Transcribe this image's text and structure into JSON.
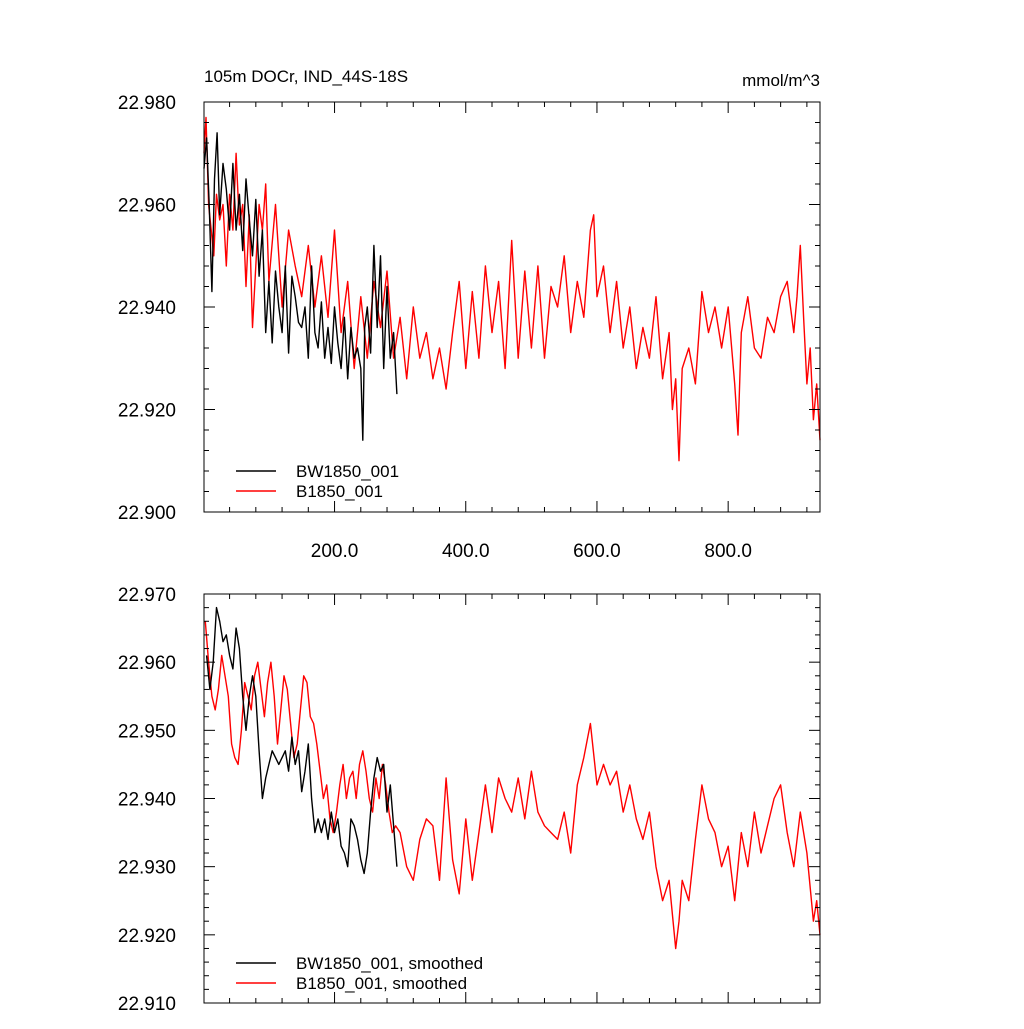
{
  "chart_data": [
    {
      "type": "line",
      "title_left": "105m DOCr, IND_44S-18S",
      "title_right": "mmol/m^3",
      "xlabel": "",
      "ylabel": "",
      "xlim": [
        1,
        940
      ],
      "ylim": [
        22.9,
        22.98
      ],
      "xticks": [
        200,
        400,
        600,
        800
      ],
      "xtick_labels": [
        "200.0",
        "400.0",
        "600.0",
        "800.0"
      ],
      "yticks": [
        22.9,
        22.92,
        22.94,
        22.96,
        22.98
      ],
      "ytick_labels": [
        "22.900",
        "22.920",
        "22.940",
        "22.960",
        "22.980"
      ],
      "legend_position": "bottom-left",
      "series": [
        {
          "name": "BW1850_001",
          "color": "#000000",
          "x": [
            1,
            5,
            9,
            13,
            17,
            21,
            25,
            30,
            35,
            40,
            45,
            50,
            55,
            60,
            65,
            70,
            75,
            80,
            85,
            90,
            95,
            100,
            105,
            110,
            115,
            120,
            125,
            130,
            135,
            140,
            145,
            150,
            155,
            160,
            165,
            170,
            175,
            180,
            185,
            190,
            195,
            200,
            205,
            210,
            215,
            220,
            225,
            230,
            235,
            240,
            243,
            246,
            250,
            255,
            260,
            265,
            270,
            275,
            280,
            285,
            290,
            295
          ],
          "values": [
            22.967,
            22.973,
            22.96,
            22.943,
            22.965,
            22.974,
            22.958,
            22.968,
            22.963,
            22.955,
            22.968,
            22.955,
            22.962,
            22.951,
            22.965,
            22.957,
            22.95,
            22.961,
            22.946,
            22.955,
            22.935,
            22.945,
            22.933,
            22.947,
            22.94,
            22.935,
            22.948,
            22.931,
            22.946,
            22.942,
            22.937,
            22.936,
            22.94,
            22.93,
            22.948,
            22.935,
            22.932,
            22.941,
            22.93,
            22.936,
            22.929,
            22.94,
            22.933,
            22.928,
            22.938,
            22.926,
            22.936,
            22.93,
            22.932,
            22.928,
            22.914,
            22.936,
            22.94,
            22.931,
            22.952,
            22.936,
            22.95,
            22.928,
            22.944,
            22.93,
            22.935,
            22.923
          ]
        },
        {
          "name": "B1850_001",
          "color": "#ff0000",
          "x": [
            1,
            4,
            8,
            12,
            16,
            20,
            25,
            30,
            35,
            40,
            45,
            50,
            55,
            60,
            65,
            70,
            75,
            80,
            85,
            90,
            95,
            100,
            110,
            120,
            130,
            140,
            150,
            160,
            170,
            180,
            190,
            200,
            210,
            220,
            230,
            240,
            250,
            260,
            270,
            280,
            290,
            300,
            310,
            320,
            330,
            340,
            350,
            360,
            370,
            380,
            390,
            400,
            410,
            420,
            430,
            440,
            450,
            460,
            470,
            480,
            490,
            500,
            510,
            520,
            530,
            540,
            550,
            560,
            570,
            580,
            590,
            595,
            600,
            610,
            620,
            630,
            640,
            650,
            660,
            670,
            680,
            690,
            700,
            710,
            715,
            720,
            725,
            730,
            740,
            750,
            760,
            770,
            780,
            790,
            800,
            810,
            815,
            820,
            830,
            840,
            850,
            860,
            870,
            880,
            890,
            900,
            905,
            910,
            915,
            920,
            925,
            930,
            935,
            940
          ],
          "values": [
            22.97,
            22.977,
            22.96,
            22.955,
            22.95,
            22.962,
            22.957,
            22.96,
            22.948,
            22.962,
            22.955,
            22.97,
            22.956,
            22.96,
            22.944,
            22.958,
            22.936,
            22.948,
            22.96,
            22.955,
            22.964,
            22.945,
            22.96,
            22.94,
            22.955,
            22.948,
            22.942,
            22.952,
            22.94,
            22.95,
            22.938,
            22.955,
            22.935,
            22.945,
            22.928,
            22.942,
            22.93,
            22.945,
            22.936,
            22.947,
            22.93,
            22.938,
            22.926,
            22.94,
            22.93,
            22.935,
            22.926,
            22.932,
            22.924,
            22.935,
            22.945,
            22.928,
            22.943,
            22.93,
            22.948,
            22.935,
            22.945,
            22.928,
            22.953,
            22.93,
            22.947,
            22.932,
            22.948,
            22.93,
            22.944,
            22.94,
            22.95,
            22.935,
            22.945,
            22.938,
            22.955,
            22.958,
            22.942,
            22.948,
            22.935,
            22.945,
            22.932,
            22.94,
            22.928,
            22.936,
            22.93,
            22.942,
            22.926,
            22.935,
            22.92,
            22.926,
            22.91,
            22.928,
            22.932,
            22.925,
            22.943,
            22.935,
            22.94,
            22.932,
            22.94,
            22.925,
            22.915,
            22.935,
            22.942,
            22.932,
            22.93,
            22.938,
            22.935,
            22.942,
            22.945,
            22.935,
            22.942,
            22.952,
            22.938,
            22.925,
            22.932,
            22.918,
            22.925,
            22.914
          ]
        }
      ]
    },
    {
      "type": "line",
      "xlim": [
        1,
        940
      ],
      "ylim": [
        22.91,
        22.97
      ],
      "xticks": [
        200,
        400,
        600,
        800
      ],
      "yticks": [
        22.91,
        22.92,
        22.93,
        22.94,
        22.95,
        22.96,
        22.97
      ],
      "ytick_labels": [
        "22.910",
        "22.920",
        "22.930",
        "22.940",
        "22.950",
        "22.960",
        "22.970"
      ],
      "legend_position": "bottom-left",
      "series": [
        {
          "name": "BW1850_001, smoothed",
          "color": "#000000",
          "x": [
            5,
            10,
            15,
            20,
            25,
            30,
            35,
            40,
            45,
            50,
            55,
            60,
            65,
            70,
            75,
            80,
            85,
            90,
            95,
            100,
            105,
            110,
            115,
            120,
            125,
            130,
            135,
            140,
            145,
            150,
            155,
            160,
            165,
            170,
            175,
            180,
            185,
            190,
            195,
            200,
            205,
            210,
            215,
            220,
            225,
            230,
            235,
            240,
            245,
            250,
            255,
            260,
            265,
            270,
            275,
            280,
            285,
            290,
            295
          ],
          "values": [
            22.961,
            22.956,
            22.96,
            22.968,
            22.966,
            22.963,
            22.964,
            22.961,
            22.959,
            22.965,
            22.962,
            22.955,
            22.95,
            22.955,
            22.958,
            22.955,
            22.947,
            22.94,
            22.943,
            22.945,
            22.947,
            22.946,
            22.945,
            22.946,
            22.947,
            22.944,
            22.949,
            22.945,
            22.947,
            22.941,
            22.944,
            22.948,
            22.94,
            22.935,
            22.937,
            22.935,
            22.937,
            22.934,
            22.938,
            22.935,
            22.937,
            22.933,
            22.932,
            22.93,
            22.937,
            22.936,
            22.934,
            22.931,
            22.929,
            22.932,
            22.938,
            22.943,
            22.946,
            22.944,
            22.945,
            22.938,
            22.942,
            22.936,
            22.93
          ]
        },
        {
          "name": "B1850_001, smoothed",
          "color": "#ff0000",
          "x": [
            3,
            8,
            13,
            18,
            23,
            28,
            33,
            38,
            43,
            48,
            53,
            58,
            63,
            68,
            73,
            78,
            83,
            88,
            93,
            98,
            103,
            108,
            113,
            118,
            123,
            128,
            133,
            138,
            143,
            148,
            153,
            158,
            163,
            168,
            173,
            178,
            183,
            188,
            193,
            198,
            203,
            208,
            213,
            218,
            223,
            228,
            233,
            238,
            243,
            248,
            253,
            258,
            263,
            268,
            273,
            278,
            283,
            288,
            293,
            300,
            310,
            320,
            330,
            340,
            350,
            360,
            370,
            380,
            390,
            400,
            410,
            420,
            430,
            440,
            450,
            460,
            470,
            480,
            490,
            500,
            510,
            520,
            530,
            540,
            550,
            560,
            570,
            580,
            590,
            600,
            610,
            620,
            630,
            640,
            650,
            660,
            670,
            680,
            690,
            700,
            710,
            720,
            725,
            730,
            740,
            750,
            760,
            770,
            780,
            790,
            800,
            810,
            820,
            830,
            840,
            850,
            860,
            870,
            880,
            890,
            900,
            910,
            920,
            930,
            935,
            940
          ],
          "values": [
            22.966,
            22.96,
            22.955,
            22.953,
            22.956,
            22.961,
            22.958,
            22.955,
            22.948,
            22.946,
            22.945,
            22.95,
            22.957,
            22.955,
            22.953,
            22.958,
            22.96,
            22.956,
            22.952,
            22.957,
            22.96,
            22.955,
            22.948,
            22.953,
            22.958,
            22.956,
            22.951,
            22.946,
            22.948,
            22.953,
            22.958,
            22.957,
            22.952,
            22.951,
            22.948,
            22.944,
            22.94,
            22.942,
            22.937,
            22.935,
            22.938,
            22.942,
            22.945,
            22.94,
            22.943,
            22.944,
            22.94,
            22.945,
            22.947,
            22.944,
            22.94,
            22.938,
            22.943,
            22.94,
            22.945,
            22.942,
            22.938,
            22.935,
            22.936,
            22.935,
            22.93,
            22.928,
            22.934,
            22.937,
            22.936,
            22.928,
            22.943,
            22.931,
            22.926,
            22.937,
            22.928,
            22.935,
            22.942,
            22.935,
            22.943,
            22.94,
            22.938,
            22.943,
            22.937,
            22.944,
            22.938,
            22.936,
            22.935,
            22.934,
            22.938,
            22.932,
            22.942,
            22.946,
            22.951,
            22.942,
            22.945,
            22.942,
            22.944,
            22.938,
            22.942,
            22.937,
            22.934,
            22.938,
            22.93,
            22.925,
            22.928,
            22.918,
            22.922,
            22.928,
            22.925,
            22.934,
            22.942,
            22.937,
            22.935,
            22.93,
            22.933,
            22.925,
            22.935,
            22.93,
            22.938,
            22.932,
            22.936,
            22.94,
            22.942,
            22.935,
            22.93,
            22.938,
            22.932,
            22.922,
            22.925,
            22.92
          ]
        }
      ]
    }
  ]
}
